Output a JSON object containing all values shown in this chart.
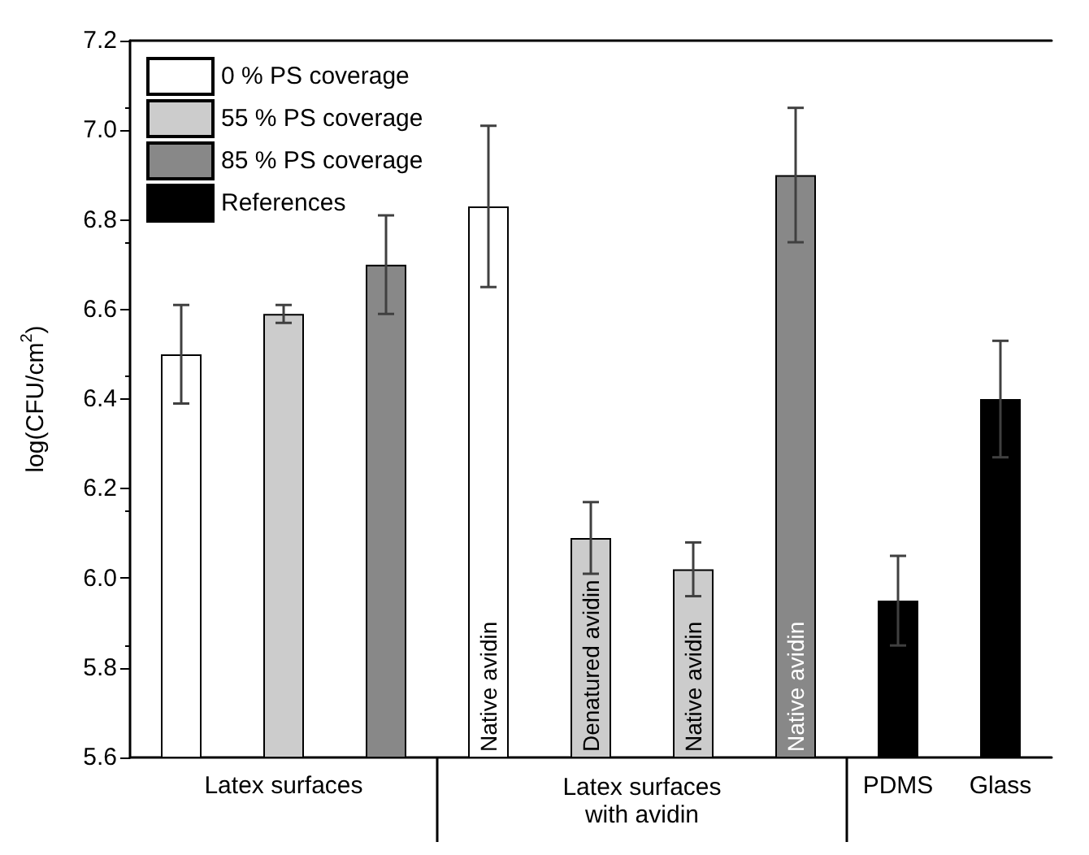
{
  "chart_data": {
    "type": "bar",
    "ylabel": "log(CFU/cm$^{2}$)",
    "categories": [
      null,
      "Latex surfaces",
      null,
      "Native avidin",
      "Denatured avidin",
      "Native avidin",
      "Native avidin",
      "PDMS",
      "Glass"
    ],
    "series": [
      {
        "name": "0 % PS coverage",
        "color": "#ffffff",
        "values": [
          6.5,
          null,
          null,
          6.83,
          null,
          null,
          null,
          null,
          null
        ],
        "errors": [
          0.11,
          null,
          null,
          0.18,
          null,
          null,
          null,
          null,
          null
        ]
      },
      {
        "name": "55 % PS coverage",
        "color": "#cccccc",
        "values": [
          null,
          6.59,
          null,
          null,
          6.09,
          6.02,
          null,
          null,
          null
        ],
        "errors": [
          null,
          0.02,
          null,
          null,
          0.08,
          0.06,
          null,
          null,
          null
        ]
      },
      {
        "name": "85 % PS coverage",
        "color": "#888888",
        "values": [
          null,
          null,
          6.7,
          null,
          null,
          null,
          6.9,
          null,
          null
        ],
        "errors": [
          null,
          null,
          0.11,
          null,
          null,
          null,
          0.15,
          null,
          null
        ]
      },
      {
        "name": "References",
        "color": "#000000",
        "values": [
          null,
          null,
          null,
          null,
          null,
          null,
          null,
          5.95,
          6.4
        ],
        "errors": [
          null,
          null,
          null,
          null,
          null,
          null,
          null,
          0.1,
          0.13
        ]
      }
    ],
    "annotations": [
      "Latex surfaces with avidin"
    ],
    "ylim": [
      5.6,
      7.2
    ],
    "yticks": [
      {
        "value": 5.6,
        "label": "5.6"
      },
      {
        "value": 5.8,
        "label": "5.8"
      },
      {
        "value": 6.0,
        "label": "6.0"
      },
      {
        "value": 6.2,
        "label": "6.2"
      },
      {
        "value": 6.4,
        "label": "6.4"
      },
      {
        "value": 6.6,
        "label": "6.6"
      },
      {
        "value": 6.8,
        "label": "6.8"
      },
      {
        "value": 7.0,
        "label": "7.0"
      },
      {
        "value": 7.2,
        "label": "7.2"
      }
    ],
    "grid": false,
    "legend": "top left"
  }
}
